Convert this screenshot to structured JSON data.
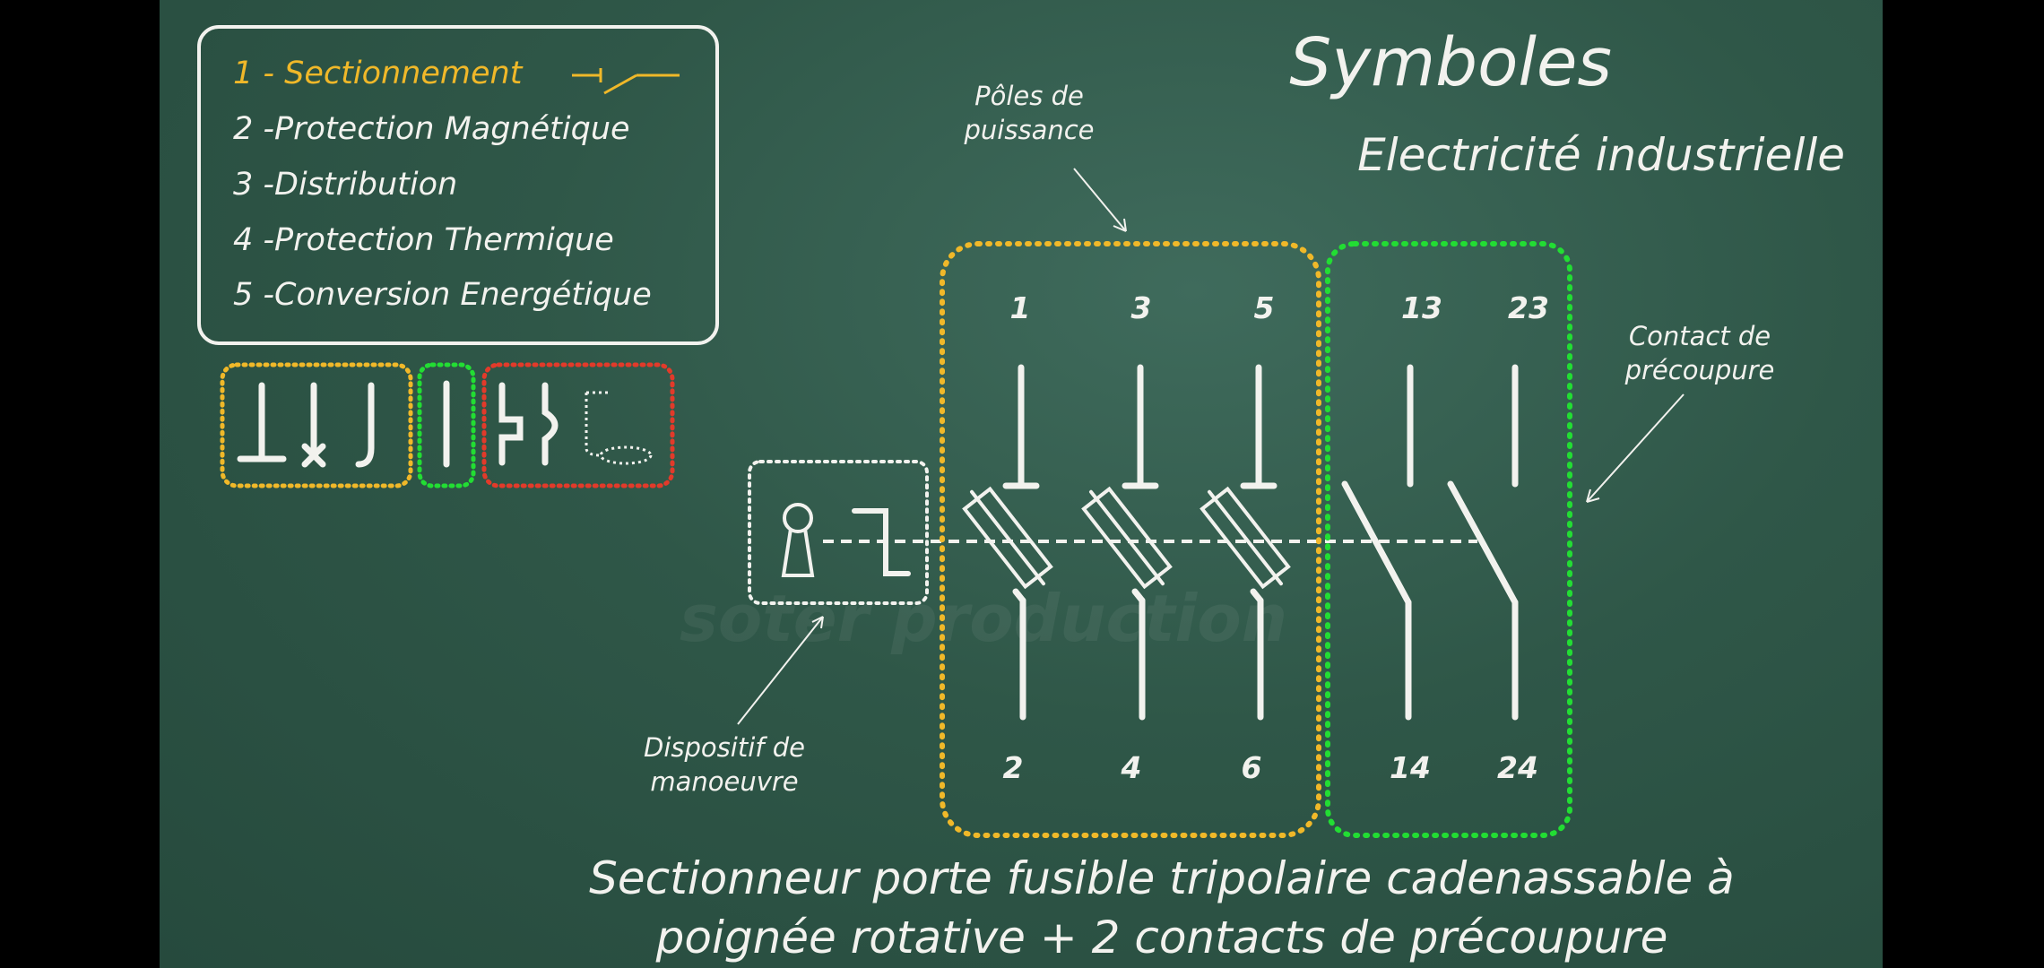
{
  "title": "Symboles",
  "subtitle": "Electricité industrielle",
  "legend": {
    "items": [
      {
        "label": "1 - Sectionnement",
        "highlighted": true
      },
      {
        "label": "2 -Protection Magnétique"
      },
      {
        "label": "3 -Distribution"
      },
      {
        "label": "4 -Protection Thermique"
      },
      {
        "label": "5 -Conversion Energétique"
      }
    ]
  },
  "annotations": {
    "poles_line1": "Pôles de",
    "poles_line2": "puissance",
    "contact_line1": "Contact de",
    "contact_line2": "précoupure",
    "device_line1": "Dispositif de",
    "device_line2": "manoeuvre"
  },
  "terminals": {
    "top": [
      "1",
      "3",
      "5",
      "13",
      "23"
    ],
    "bottom": [
      "2",
      "4",
      "6",
      "14",
      "24"
    ]
  },
  "caption": {
    "line1": "Sectionneur porte fusible tripolaire cadenassable à",
    "line2": "poignée rotative + 2 contacts de précoupure"
  },
  "watermark": "soter production",
  "colors": {
    "board": "#2f5748",
    "chalk": "#f2f2ee",
    "yellow": "#f0b829",
    "green": "#22dd33",
    "red": "#e23a2a"
  }
}
